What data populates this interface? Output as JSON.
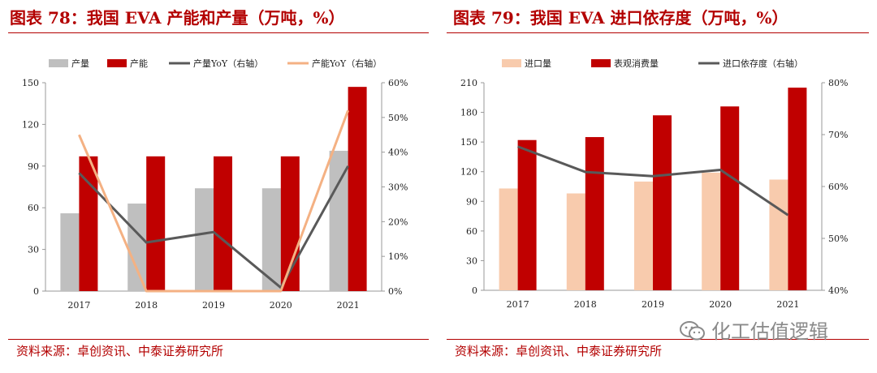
{
  "left": {
    "title": "图表 78：我国 EVA 产能和产量（万吨，%）",
    "source": "资料来源：卓创资讯、中泰证券研究所"
  },
  "right": {
    "title": "图表 79：我国 EVA 进口依存度（万吨，%）",
    "source": "资料来源：卓创资讯、中泰证券研究所"
  },
  "watermark": {
    "text": "化工估值逻辑",
    "icon": "wechat-icon"
  },
  "colors": {
    "accent": "#b30000",
    "bar_gray": "#bfbfbf",
    "bar_red": "#c00000",
    "line_dark": "#595959",
    "line_orange": "#f4b183",
    "bar_peach": "#f8cbad"
  },
  "chart_data": [
    {
      "type": "bar",
      "categories": [
        "2017",
        "2018",
        "2019",
        "2020",
        "2021"
      ],
      "series": [
        {
          "name": "产量",
          "kind": "bar",
          "axis": "left",
          "color": "#bfbfbf",
          "values": [
            56,
            63,
            74,
            74,
            101
          ]
        },
        {
          "name": "产能",
          "kind": "bar",
          "axis": "left",
          "color": "#c00000",
          "values": [
            97,
            97,
            97,
            97,
            147
          ]
        },
        {
          "name": "产量YoY（右轴）",
          "kind": "line",
          "axis": "right",
          "color": "#595959",
          "values": [
            34,
            14,
            17,
            1,
            36
          ]
        },
        {
          "name": "产能YoY（右轴）",
          "kind": "line",
          "axis": "right",
          "color": "#f4b183",
          "values": [
            45,
            0,
            0,
            0,
            52
          ]
        }
      ],
      "ylim": [
        0,
        150
      ],
      "yticks": [
        "0",
        "30",
        "60",
        "90",
        "120",
        "150"
      ],
      "y2lim": [
        0,
        60
      ],
      "y2ticks": [
        "0%",
        "10%",
        "20%",
        "30%",
        "40%",
        "50%",
        "60%"
      ],
      "legend_position": "top",
      "grid": false
    },
    {
      "type": "bar",
      "categories": [
        "2017",
        "2018",
        "2019",
        "2020",
        "2021"
      ],
      "series": [
        {
          "name": "进口量",
          "kind": "bar",
          "axis": "left",
          "color": "#f8cbad",
          "values": [
            103,
            98,
            110,
            119,
            112
          ]
        },
        {
          "name": "表观消费量",
          "kind": "bar",
          "axis": "left",
          "color": "#c00000",
          "values": [
            152,
            155,
            177,
            186,
            205
          ]
        },
        {
          "name": "进口依存度（右轴）",
          "kind": "line",
          "axis": "right",
          "color": "#595959",
          "values": [
            67.7,
            62.8,
            62.0,
            63.2,
            54.5
          ]
        }
      ],
      "ylim": [
        0,
        210
      ],
      "yticks": [
        "0",
        "30",
        "60",
        "90",
        "120",
        "150",
        "180",
        "210"
      ],
      "y2lim": [
        40,
        80
      ],
      "y2ticks": [
        "40%",
        "50%",
        "60%",
        "70%",
        "80%"
      ],
      "legend_position": "top",
      "grid": false
    }
  ]
}
